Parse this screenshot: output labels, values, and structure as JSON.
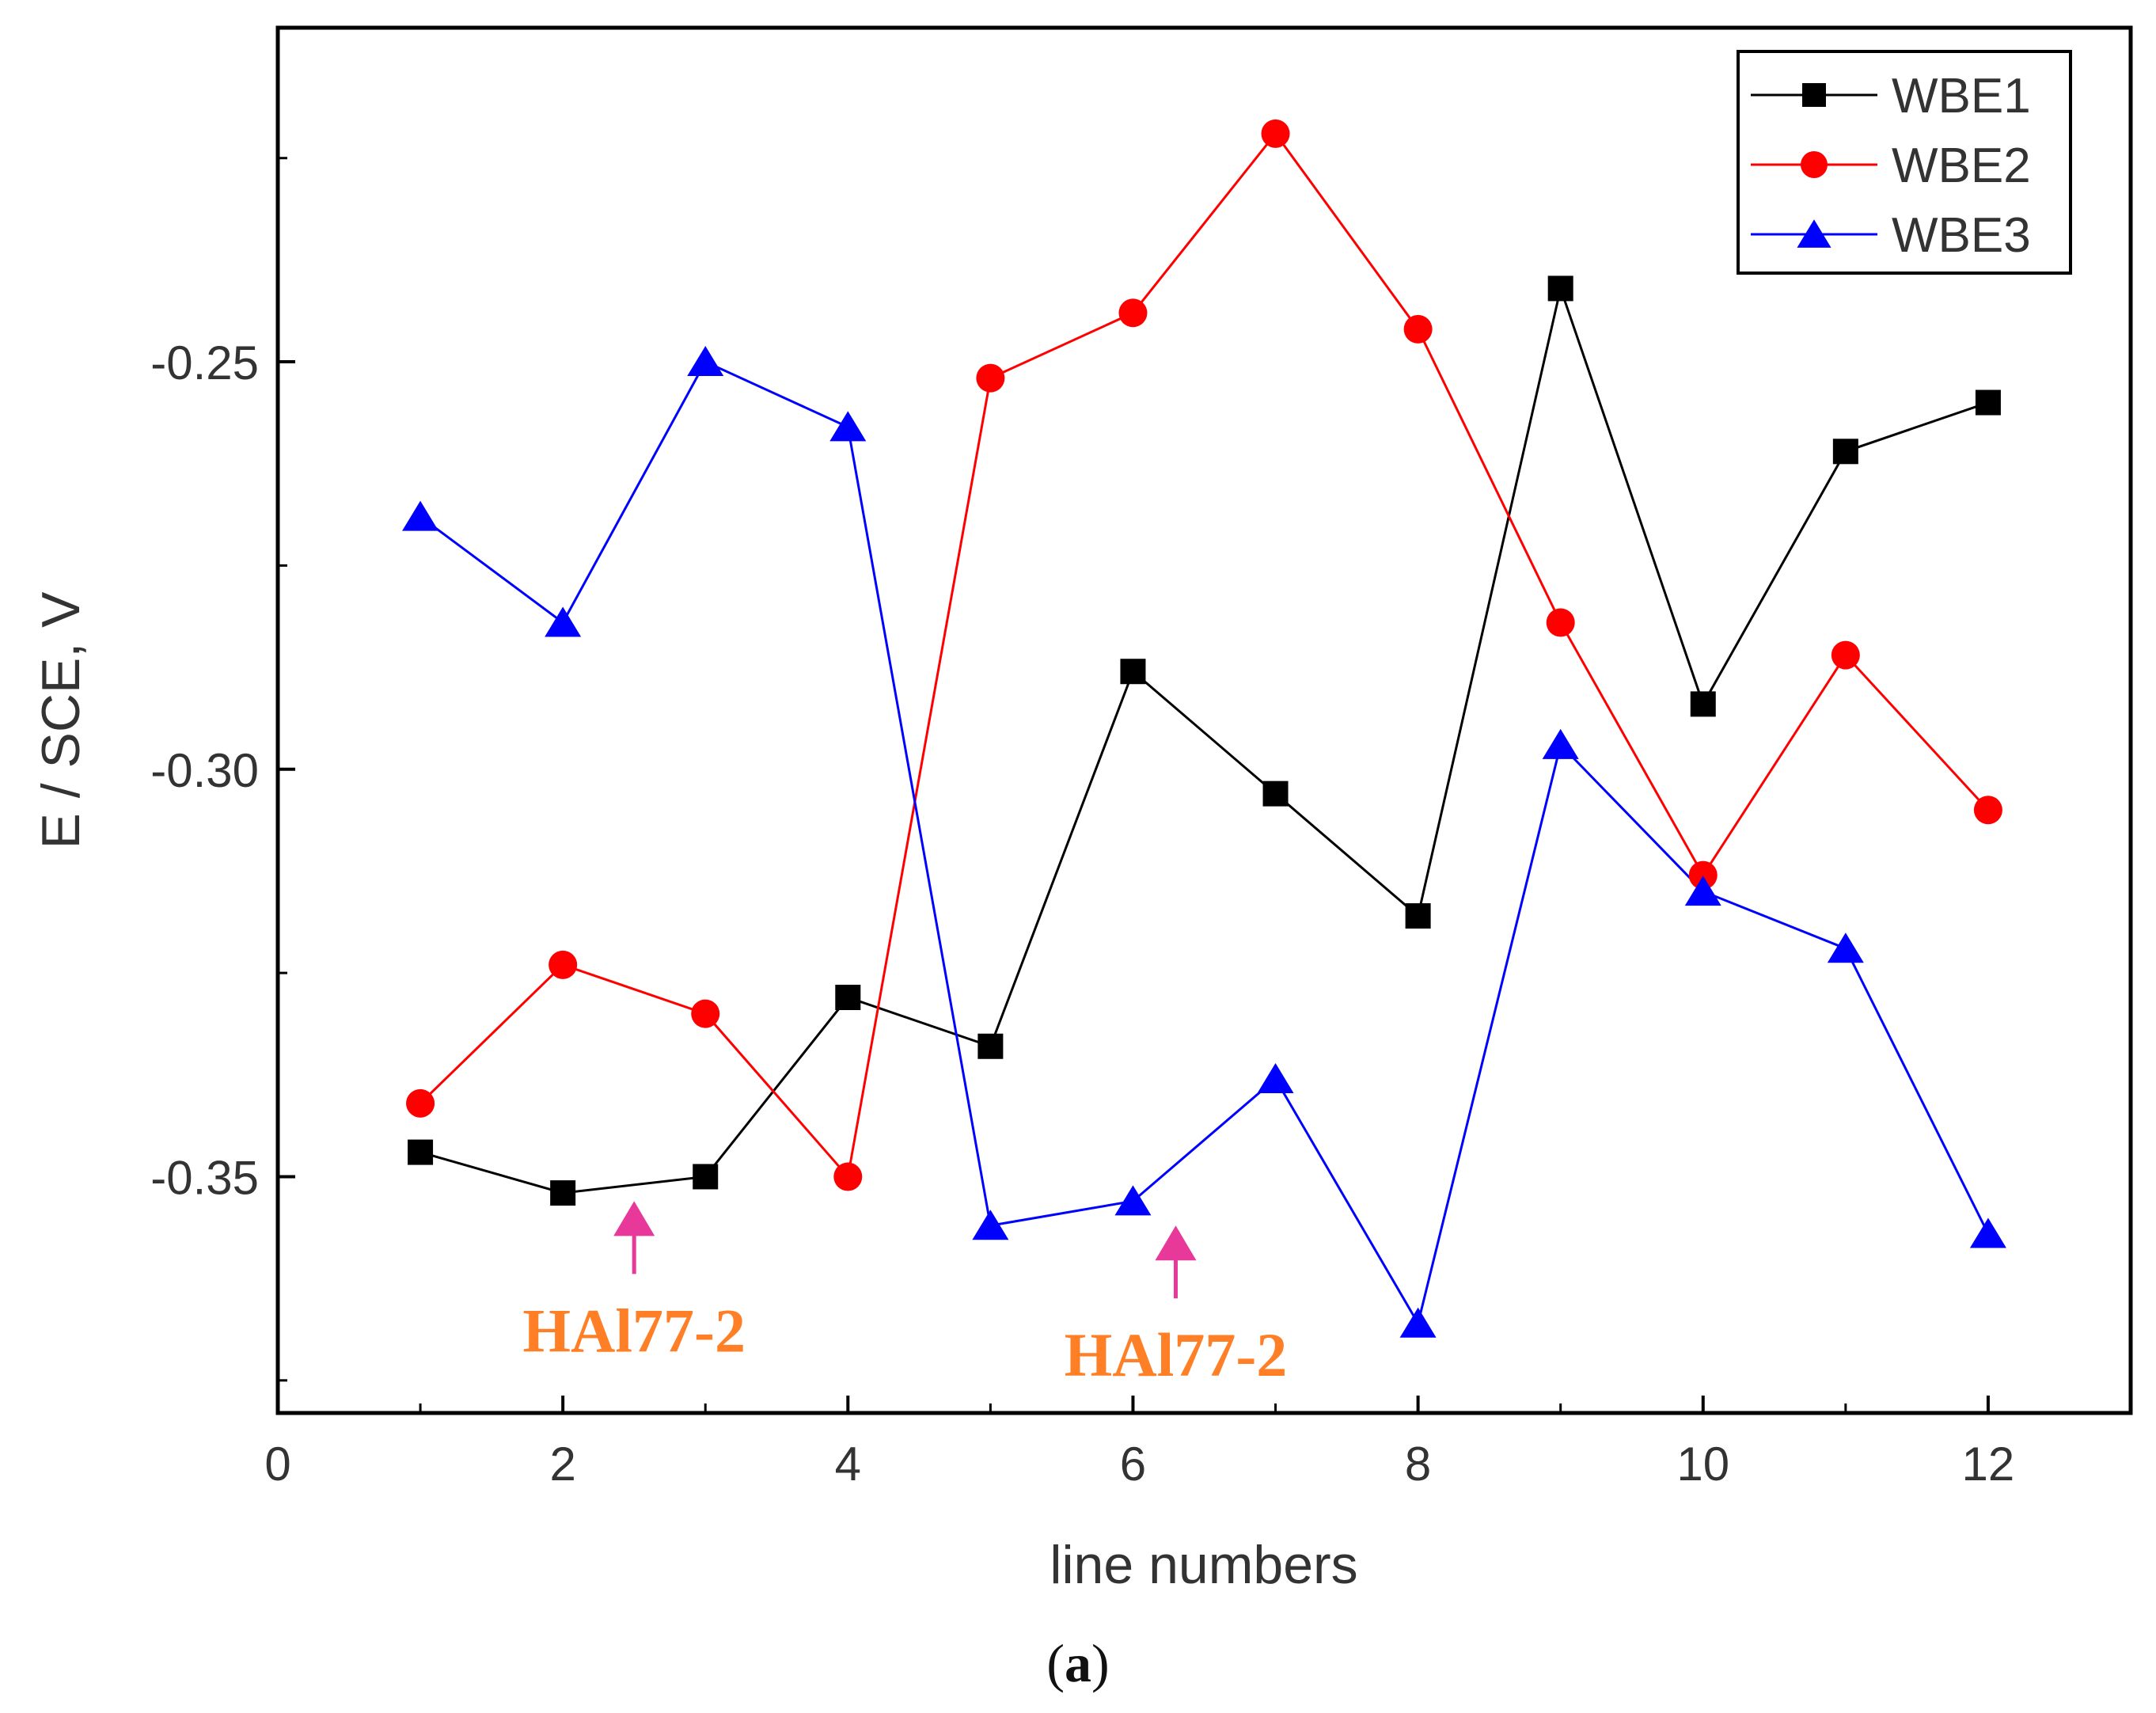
{
  "chart_data": {
    "type": "line",
    "xlabel": "line numbers",
    "ylabel": "E / SCE, V",
    "caption_letter": "a",
    "xlim": [
      0,
      13
    ],
    "ylim": [
      -0.379,
      -0.209
    ],
    "xticks": [
      0,
      2,
      4,
      6,
      8,
      10,
      12
    ],
    "yticks": [
      -0.25,
      -0.3,
      -0.35
    ],
    "ytick_labels": [
      "-0.25",
      "-0.30",
      "-0.35"
    ],
    "x": [
      1,
      2,
      3,
      4,
      5,
      6,
      7,
      8,
      9,
      10,
      11,
      12
    ],
    "series": [
      {
        "name": "WBE1",
        "color": "#000000",
        "marker": "square",
        "values": [
          -0.347,
          -0.352,
          -0.35,
          -0.328,
          -0.334,
          -0.288,
          -0.303,
          -0.318,
          -0.241,
          -0.292,
          -0.261,
          -0.255
        ]
      },
      {
        "name": "WBE2",
        "color": "#ff0000",
        "marker": "circle",
        "values": [
          -0.341,
          -0.324,
          -0.33,
          -0.35,
          -0.252,
          -0.244,
          -0.222,
          -0.246,
          -0.282,
          -0.313,
          -0.286,
          -0.305
        ]
      },
      {
        "name": "WBE3",
        "color": "#0000ff",
        "marker": "triangle",
        "values": [
          -0.269,
          -0.282,
          -0.25,
          -0.258,
          -0.356,
          -0.353,
          -0.338,
          -0.368,
          -0.297,
          -0.315,
          -0.322,
          -0.357
        ]
      }
    ],
    "legend_position": "top-right",
    "annotations": [
      {
        "text": "HAl77-2",
        "x": 2.5,
        "y": -0.353,
        "arrow_color": "#e8399a",
        "text_color": "#ff7f27"
      },
      {
        "text": "HAl77-2",
        "x": 6.3,
        "y": -0.356,
        "arrow_color": "#e8399a",
        "text_color": "#ff7f27"
      }
    ]
  }
}
